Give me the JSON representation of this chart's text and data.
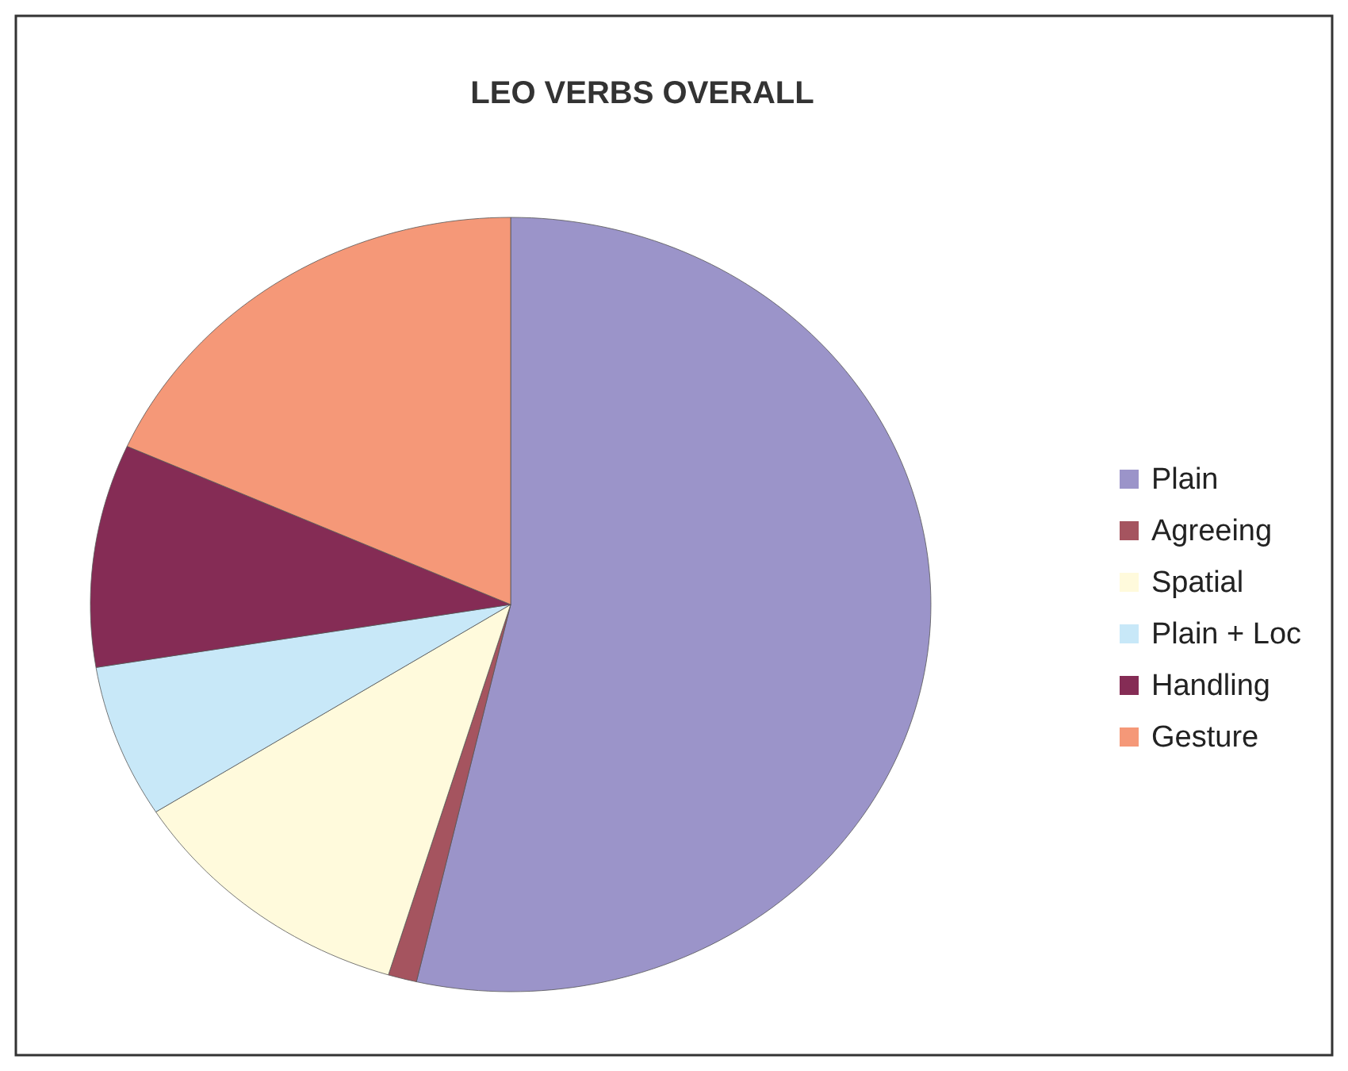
{
  "chart_data": {
    "type": "pie",
    "title": "LEO VERBS OVERALL",
    "categories": [
      "Plain",
      "Agreeing",
      "Spatial",
      "Plain + Loc",
      "Handling",
      "Gesture"
    ],
    "values": [
      53.6,
      1.1,
      11.3,
      6.4,
      9.3,
      18.3
    ],
    "colors": [
      "#9b94c9",
      "#a5545f",
      "#fffadc",
      "#c8e8f8",
      "#852c55",
      "#f59878"
    ],
    "legend": "right"
  }
}
